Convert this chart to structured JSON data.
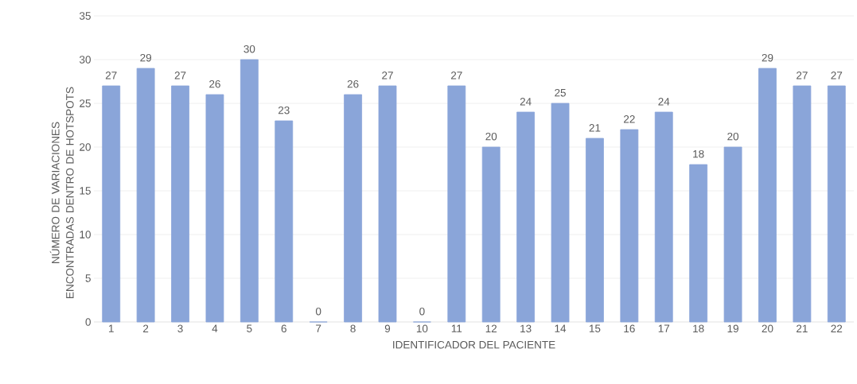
{
  "chart_data": {
    "type": "bar",
    "xlabel": "IDENTIFICADOR DEL PACIENTE",
    "ylabel": "NÚMERO DE VARIACIONES ENCONTRADAS DENTRO DE HOTSPOTS",
    "categories": [
      "1",
      "2",
      "3",
      "4",
      "5",
      "6",
      "7",
      "8",
      "9",
      "10",
      "11",
      "12",
      "13",
      "14",
      "15",
      "16",
      "17",
      "18",
      "19",
      "20",
      "21",
      "22"
    ],
    "values": [
      27,
      29,
      27,
      26,
      30,
      23,
      0,
      26,
      27,
      0,
      27,
      20,
      24,
      25,
      21,
      22,
      24,
      18,
      20,
      29,
      27,
      27
    ],
    "color": "#8aa5d9",
    "ylim": [
      0,
      35
    ],
    "yticks": [
      0,
      5,
      10,
      15,
      20,
      25,
      30,
      35
    ],
    "grid": "y",
    "data_labels": true
  }
}
